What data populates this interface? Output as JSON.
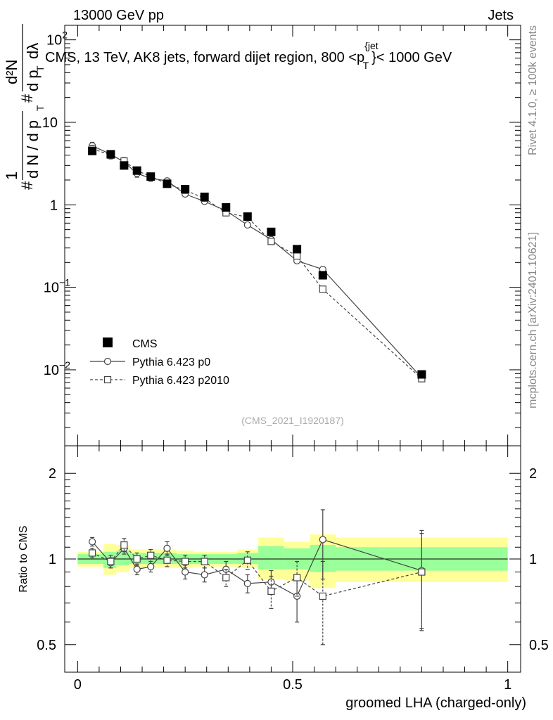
{
  "header": {
    "left": "13000 GeV pp",
    "right": "Jets"
  },
  "side_texts": {
    "top": "Rivet 4.1.0, ≥ 100k events",
    "bottom": "mcplots.cern.ch [arXiv:2401.10621]"
  },
  "analysis_tag": "(CMS_2021_I1920187)",
  "colors": {
    "band_inner": "#99ff99",
    "band_outer": "#ffff99",
    "mc_line": "#444444"
  },
  "chart_data": [
    {
      "type": "scatter",
      "name": "main",
      "title": "CMS, 13 TeV, AK8 jets, forward dijet region, 800 <p_T^{jet}< 1000 GeV",
      "title_parts": {
        "prefix": "CMS, 13 TeV, AK8 jets, forward dijet region, 800 <p",
        "sup": "{jet",
        "sub": "T",
        "suffix": "}< 1000 GeV"
      },
      "ylabel": "1/(dN/dp_T) d²N/(dp_T dλ)",
      "ylabel_parts": {
        "frac_num": "1",
        "frac_den_a": "d N / d p",
        "frac_den_sub": "T",
        "d2N": "d²N",
        "num2": "d p",
        "num2_sub": "T",
        "dl": "dλ",
        "hash": "#"
      },
      "yscale": "log",
      "ylim": [
        0.0012,
        150
      ],
      "yticks": [
        {
          "v": 0.01,
          "base": "10",
          "exp": "−2"
        },
        {
          "v": 0.1,
          "base": "10",
          "exp": "−1"
        },
        {
          "v": 1,
          "base": "1",
          "exp": ""
        },
        {
          "v": 10,
          "base": "10",
          "exp": ""
        },
        {
          "v": 100,
          "base": "10",
          "exp": "2"
        }
      ],
      "x": [
        0.034,
        0.077,
        0.108,
        0.138,
        0.17,
        0.208,
        0.25,
        0.295,
        0.345,
        0.395,
        0.45,
        0.51,
        0.57,
        0.8
      ],
      "series": [
        {
          "name": "CMS",
          "style": "data",
          "values": [
            4.5,
            4.1,
            3.0,
            2.6,
            2.2,
            1.8,
            1.55,
            1.25,
            0.93,
            0.72,
            0.47,
            0.29,
            0.14,
            0.0088
          ]
        },
        {
          "name": "Pythia 6.423 p0",
          "style": "solid-circle",
          "values": [
            5.2,
            4.1,
            3.3,
            2.4,
            2.1,
            1.95,
            1.35,
            1.1,
            0.85,
            0.57,
            0.38,
            0.21,
            0.165,
            0.008
          ],
          "errors": [
            0.1,
            0.1,
            0.1,
            0.1,
            0.08,
            0.07,
            0.06,
            0.06,
            0.06,
            0.05,
            0.04,
            0.03,
            0.02,
            0.003
          ]
        },
        {
          "name": "Pythia 6.423 p2010",
          "style": "dashed-square",
          "values": [
            4.8,
            4.0,
            3.4,
            2.6,
            2.2,
            1.8,
            1.5,
            1.2,
            0.8,
            0.71,
            0.36,
            0.24,
            0.095,
            0.0078
          ],
          "errors": [
            0.1,
            0.1,
            0.1,
            0.1,
            0.08,
            0.07,
            0.06,
            0.06,
            0.06,
            0.05,
            0.05,
            0.03,
            0.02,
            0.003
          ]
        }
      ],
      "legend": {
        "position": "lower-left",
        "entries": [
          "CMS",
          "Pythia 6.423 p0",
          "Pythia 6.423 p2010"
        ]
      }
    },
    {
      "type": "scatter",
      "name": "ratio",
      "ylabel": "Ratio to CMS",
      "xlabel": "groomed LHA (charged-only)",
      "yscale": "log",
      "ylim": [
        0.4,
        2.5
      ],
      "xlim": [
        -0.03,
        1.03
      ],
      "xticks": [
        {
          "v": 0,
          "label": "0"
        },
        {
          "v": 0.5,
          "label": "0.5"
        },
        {
          "v": 1,
          "label": "1"
        }
      ],
      "yticks": [
        {
          "v": 0.5,
          "label": "0.5"
        },
        {
          "v": 1,
          "label": "1"
        },
        {
          "v": 2,
          "label": "2"
        }
      ],
      "bands": [
        {
          "x0": 0.0,
          "x1": 0.06,
          "inner": [
            0.96,
            1.04
          ],
          "outer": [
            0.94,
            1.06
          ]
        },
        {
          "x0": 0.06,
          "x1": 0.09,
          "inner": [
            0.93,
            1.06
          ],
          "outer": [
            0.88,
            1.13
          ]
        },
        {
          "x0": 0.09,
          "x1": 0.12,
          "inner": [
            0.95,
            1.07
          ],
          "outer": [
            0.9,
            1.12
          ]
        },
        {
          "x0": 0.12,
          "x1": 0.15,
          "inner": [
            0.96,
            1.05
          ],
          "outer": [
            0.93,
            1.08
          ]
        },
        {
          "x0": 0.15,
          "x1": 0.19,
          "inner": [
            0.96,
            1.05
          ],
          "outer": [
            0.93,
            1.08
          ]
        },
        {
          "x0": 0.19,
          "x1": 0.23,
          "inner": [
            0.96,
            1.05
          ],
          "outer": [
            0.93,
            1.08
          ]
        },
        {
          "x0": 0.23,
          "x1": 0.27,
          "inner": [
            0.96,
            1.04
          ],
          "outer": [
            0.93,
            1.07
          ]
        },
        {
          "x0": 0.27,
          "x1": 0.32,
          "inner": [
            0.96,
            1.04
          ],
          "outer": [
            0.94,
            1.06
          ]
        },
        {
          "x0": 0.32,
          "x1": 0.37,
          "inner": [
            0.96,
            1.04
          ],
          "outer": [
            0.94,
            1.06
          ]
        },
        {
          "x0": 0.37,
          "x1": 0.42,
          "inner": [
            0.96,
            1.05
          ],
          "outer": [
            0.93,
            1.08
          ]
        },
        {
          "x0": 0.42,
          "x1": 0.48,
          "inner": [
            0.92,
            1.11
          ],
          "outer": [
            0.85,
            1.19
          ]
        },
        {
          "x0": 0.48,
          "x1": 0.54,
          "inner": [
            0.92,
            1.09
          ],
          "outer": [
            0.84,
            1.15
          ]
        },
        {
          "x0": 0.54,
          "x1": 0.6,
          "inner": [
            0.9,
            1.12
          ],
          "outer": [
            0.79,
            1.22
          ]
        },
        {
          "x0": 0.6,
          "x1": 1.0,
          "inner": [
            0.91,
            1.1
          ],
          "outer": [
            0.83,
            1.19
          ]
        }
      ],
      "series": [
        {
          "name": "Pythia 6.423 p0",
          "style": "solid-circle",
          "values": [
            1.15,
            0.97,
            1.09,
            0.92,
            0.94,
            1.09,
            0.9,
            0.88,
            0.92,
            0.82,
            0.83,
            0.74,
            1.17,
            0.91
          ],
          "errors": [
            0.04,
            0.04,
            0.05,
            0.04,
            0.04,
            0.06,
            0.05,
            0.05,
            0.06,
            0.06,
            0.08,
            0.14,
            0.32,
            0.35
          ]
        },
        {
          "name": "Pythia 6.423 p2010",
          "style": "dashed-square",
          "values": [
            1.05,
            0.98,
            1.12,
            1.0,
            1.03,
            0.99,
            0.98,
            0.98,
            0.86,
            0.99,
            0.77,
            0.86,
            0.74,
            0.9
          ],
          "errors": [
            0.04,
            0.05,
            0.06,
            0.05,
            0.05,
            0.05,
            0.05,
            0.05,
            0.06,
            0.07,
            0.1,
            0.12,
            0.24,
            0.33
          ]
        }
      ]
    }
  ]
}
